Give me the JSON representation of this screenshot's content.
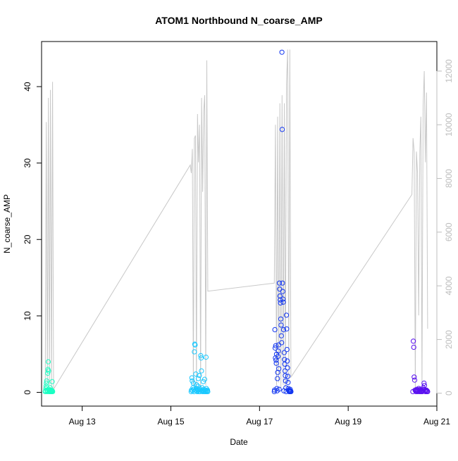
{
  "chart_data": {
    "type": "scatter",
    "title": "ATOM1 Northbound N_coarse_AMP",
    "xlabel": "Date",
    "ylabel": "N_coarse_AMP",
    "x_ticks": [
      {
        "label": "Aug 13",
        "date": "2013-08-13"
      },
      {
        "label": "Aug 15",
        "date": "2013-08-15"
      },
      {
        "label": "Aug 17",
        "date": "2013-08-17"
      },
      {
        "label": "Aug 19",
        "date": "2013-08-19"
      },
      {
        "label": "Aug 21",
        "date": "2013-08-21"
      }
    ],
    "xlim": [
      "2013-08-12 02:00",
      "2013-08-21 00:00"
    ],
    "ylim": [
      -1.8,
      45.9
    ],
    "y_ticks": [
      0,
      10,
      20,
      30,
      40
    ],
    "y2_ticks": [
      0,
      2000,
      4000,
      6000,
      8000,
      10000,
      12000
    ],
    "y2lim": [
      -480,
      13100
    ],
    "grid": false,
    "legend": "none",
    "colors": {
      "secondary_line": "#c8c8c8",
      "right_axis": "#bdbdbd",
      "groups": [
        "#1affc3",
        "#19c8ff",
        "#1236f0",
        "#5a10f0"
      ]
    },
    "groups": [
      {
        "x_start": "2013-08-12 04:00",
        "x_end": "2013-08-12 08:00",
        "y": [
          0.1,
          0.2,
          0.5,
          0.8,
          1.2,
          1.5,
          0.3,
          0.1,
          0.2,
          2.5,
          3.0,
          4.0,
          2.8,
          0.4,
          0.1,
          0.2,
          0.3,
          0.1,
          0.6,
          0.2,
          0.1,
          0.1,
          0.3,
          0.2,
          0.1,
          1.4,
          0.2,
          0.1
        ]
      },
      {
        "x_start": "2013-08-15 11:00",
        "x_end": "2013-08-15 20:00",
        "y": [
          0.1,
          0.3,
          1.9,
          1.5,
          0.2,
          0.6,
          1.2,
          0.4,
          0.1,
          5.3,
          6.3,
          6.2,
          0.3,
          2.4,
          0.5,
          1.0,
          0.2,
          0.1,
          0.4,
          0.8,
          1.8,
          0.3,
          0.1,
          2.2,
          0.5,
          0.1,
          0.3,
          4.8,
          4.5,
          2.8,
          0.2,
          0.6,
          0.1,
          0.3,
          1.4,
          0.2,
          0.4,
          0.1,
          1.7,
          0.3,
          0.1,
          0.2,
          4.6,
          0.5,
          0.1,
          0.2,
          0.3,
          0.1
        ]
      },
      {
        "x_start": "2013-08-17 08:00",
        "x_end": "2013-08-17 17:00",
        "y": [
          0.1,
          0.3,
          8.2,
          5.8,
          4.5,
          6.1,
          4.2,
          3.8,
          5.0,
          0.5,
          0.2,
          1.8,
          2.6,
          4.7,
          5.4,
          6.2,
          3.1,
          0.4,
          14.3,
          13.5,
          12.6,
          12.1,
          11.7,
          9.6,
          8.8,
          7.4,
          6.5,
          44.5,
          34.4,
          14.3,
          13.2,
          12.2,
          11.8,
          8.2,
          0.2,
          5.2,
          4.3,
          3.7,
          2.8,
          2.2,
          1.5,
          0.6,
          0.1,
          10.1,
          8.3,
          5.6,
          4.1,
          3.2,
          2.1,
          1.3,
          0.5,
          0.3,
          0.2,
          0.1,
          0.1,
          0.2,
          0.4,
          0.1,
          0.2,
          0.1
        ]
      },
      {
        "x_start": "2013-08-20 11:00",
        "x_end": "2013-08-20 19:00",
        "y": [
          0.1,
          6.7,
          5.9,
          2.0,
          1.6,
          0.3,
          0.2,
          0.1,
          0.2,
          0.4,
          0.3,
          0.1,
          0.2,
          0.5,
          0.3,
          0.1,
          0.2,
          0.4,
          0.1,
          0.2,
          0.3,
          0.1,
          0.2,
          0.6,
          0.4,
          1.2,
          0.9,
          0.3,
          0.1,
          0.2,
          0.3,
          0.1,
          0.2,
          0.1
        ]
      }
    ],
    "secondary_series": {
      "axis": "right",
      "segments": [
        {
          "x_start": "2013-08-12 04:00",
          "x_end": "2013-08-12 08:30",
          "y": [
            100,
            10100,
            400,
            11000,
            300,
            11300,
            200,
            11600,
            150
          ]
        },
        {
          "x_start": "2013-08-15 10:30",
          "x_end": "2013-08-15 20:00",
          "y": [
            8500,
            8200,
            9100,
            300,
            9500,
            9600,
            200,
            10400,
            8600,
            10000,
            200,
            11000,
            7500,
            10500,
            11100,
            300,
            12400,
            3800
          ]
        },
        {
          "x_start": "2013-08-17 08:00",
          "x_end": "2013-08-17 17:00",
          "y": [
            4100,
            10000,
            300,
            10300,
            400,
            10800,
            200,
            11100,
            300,
            10800,
            200,
            11500,
            12800,
            400,
            12800,
            600
          ]
        },
        {
          "x_start": "2013-08-20 10:30",
          "x_end": "2013-08-20 19:00",
          "y": [
            7400,
            9500,
            9000,
            200,
            9000,
            8200,
            2900,
            9000,
            10300,
            300,
            10700,
            12000,
            8600,
            11200,
            2400
          ]
        }
      ]
    }
  }
}
